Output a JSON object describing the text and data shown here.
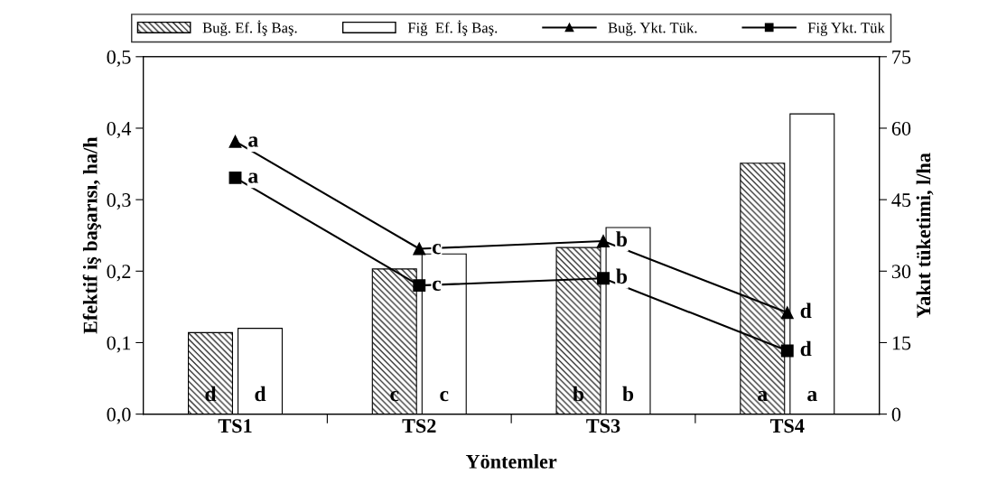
{
  "chart_data": {
    "type": "bar",
    "categories": [
      "TS1",
      "TS2",
      "TS3",
      "TS4"
    ],
    "xlabel": "Yöntemler",
    "ylabel": "Efektif iş başarısı, ha/h",
    "y2label": "Yakıt tüketimi, l/ha",
    "ylim": [
      0,
      0.5
    ],
    "yticks": [
      {
        "value": 0,
        "label": "0,0"
      },
      {
        "value": 0.1,
        "label": "0,1"
      },
      {
        "value": 0.2,
        "label": "0,2"
      },
      {
        "value": 0.3,
        "label": "0,3"
      },
      {
        "value": 0.4,
        "label": "0,4"
      },
      {
        "value": 0.5,
        "label": "0,5"
      }
    ],
    "y2lim": [
      0,
      75
    ],
    "y2ticks": [
      0,
      15,
      30,
      45,
      60,
      75
    ],
    "legend": "top",
    "grid": false,
    "series": [
      {
        "name": "Buğ. Ef. İş Baş.",
        "color": "#000000",
        "values": [
          0.114,
          0.203,
          0.233,
          0.351
        ],
        "value_labels": [
          "d",
          "c",
          "b",
          "a"
        ]
      },
      {
        "name": "Fiğ  Ef. İş Baş.",
        "color": "#ffffff",
        "values": [
          0.12,
          0.224,
          0.261,
          0.42
        ],
        "value_labels": [
          "d",
          "c",
          "b",
          "a"
        ]
      },
      {
        "name": "Buğ. Ykt. Tük.",
        "type": "line",
        "axis": "y2",
        "marker": "triangle",
        "color": "#000000",
        "values": [
          57.2,
          34.7,
          36.3,
          21.3
        ],
        "value_labels": [
          "a",
          "c",
          "b",
          "d"
        ]
      },
      {
        "name": "Fiğ Ykt. Tük",
        "type": "line",
        "axis": "y2",
        "marker": "square",
        "color": "#000000",
        "values": [
          49.6,
          27.0,
          28.5,
          13.3
        ],
        "value_labels": [
          "a",
          "c",
          "b",
          "d"
        ]
      }
    ]
  }
}
